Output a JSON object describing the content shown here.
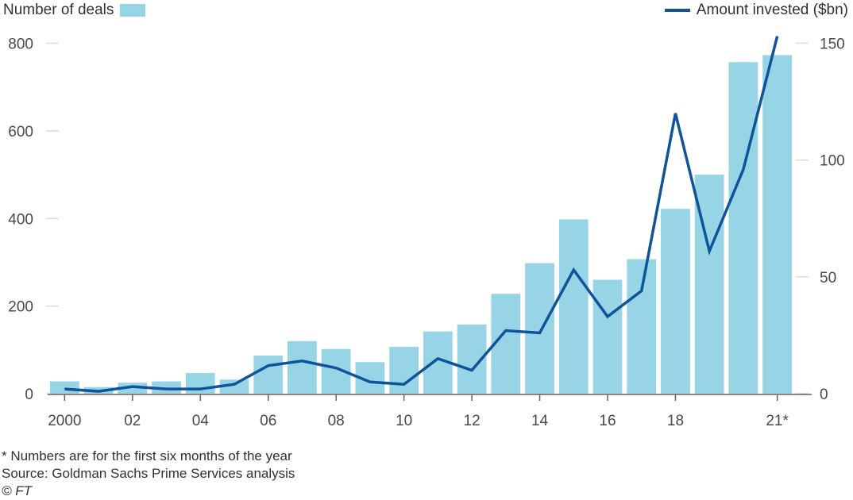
{
  "legend": {
    "bars_label": "Number of deals",
    "line_label": "Amount invested ($bn)"
  },
  "notes": {
    "footnote": "* Numbers are for the first six months of the year",
    "source": "Source: Goldman Sachs Prime Services analysis",
    "credit": "© FT"
  },
  "colors": {
    "bars": "#96d4e6",
    "line": "#0f5499",
    "axis": "#66605c",
    "tick": "#e6d8cc"
  },
  "chart_data": {
    "type": "bar",
    "categories": [
      "2000",
      "2001",
      "2002",
      "2003",
      "2004",
      "2005",
      "2006",
      "2007",
      "2008",
      "2009",
      "2010",
      "2011",
      "2012",
      "2013",
      "2014",
      "2015",
      "2016",
      "2017",
      "2018",
      "2019",
      "2020",
      "2021"
    ],
    "x_tick_labels": [
      "2000",
      "",
      "02",
      "",
      "04",
      "",
      "06",
      "",
      "08",
      "",
      "10",
      "",
      "12",
      "",
      "14",
      "",
      "16",
      "",
      "18",
      "",
      "",
      "21*"
    ],
    "series": [
      {
        "name": "Number of deals",
        "type": "bar",
        "axis": "left",
        "values": [
          28,
          15,
          25,
          28,
          47,
          32,
          87,
          120,
          102,
          72,
          107,
          142,
          158,
          228,
          298,
          398,
          260,
          307,
          422,
          500,
          757,
          773
        ]
      },
      {
        "name": "Amount invested ($bn)",
        "type": "line",
        "axis": "right",
        "values": [
          2,
          1,
          3,
          2,
          2,
          4,
          12,
          14,
          11,
          5,
          4,
          15,
          10,
          27,
          26,
          53,
          33,
          44,
          120,
          61,
          96,
          153
        ]
      }
    ],
    "left_axis": {
      "ticks": [
        0,
        200,
        400,
        600,
        800
      ],
      "ylim": [
        0,
        830
      ]
    },
    "right_axis": {
      "ticks": [
        0,
        50,
        100,
        150
      ],
      "ylim": [
        0,
        155.6
      ]
    },
    "grid": false,
    "legend_placement": "top"
  }
}
